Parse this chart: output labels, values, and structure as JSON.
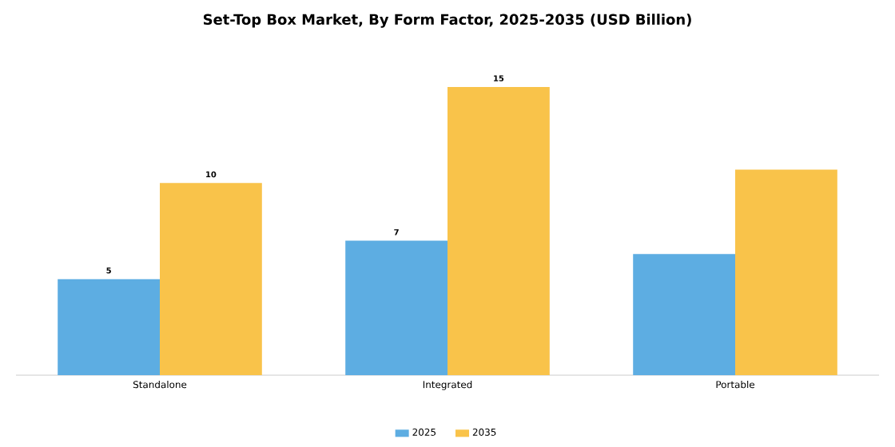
{
  "chart_data": {
    "type": "bar",
    "title": "Set-Top Box Market, By Form Factor, 2025-2035 (USD Billion)",
    "categories": [
      "Standalone",
      "Integrated",
      "Portable"
    ],
    "series": [
      {
        "name": "2025",
        "color": "#5dade2",
        "values": [
          5,
          7,
          6.3
        ],
        "value_labels": [
          "5",
          "7",
          null
        ]
      },
      {
        "name": "2035",
        "color": "#f9c34a",
        "values": [
          10,
          15,
          10.7
        ],
        "value_labels": [
          "10",
          "15",
          null
        ]
      }
    ],
    "legend": "bottom"
  }
}
